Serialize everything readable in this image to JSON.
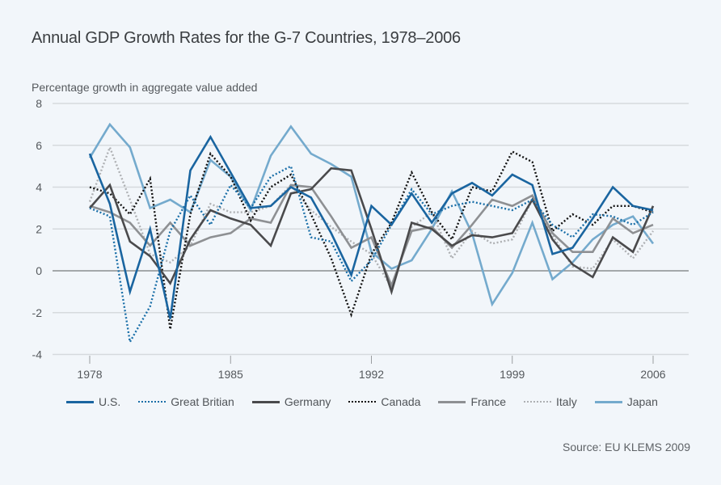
{
  "chart_data": {
    "type": "line",
    "title": "Annual GDP Growth Rates for the G-7 Countries, 1978–2006",
    "ylabel": "Percentage growth in aggregate value added",
    "xlabel": "",
    "source": "Source: EU KLEMS 2009",
    "xlim": [
      1978,
      2006
    ],
    "ylim": [
      -4,
      8
    ],
    "yticks": [
      8,
      6,
      4,
      2,
      0,
      -2,
      -4
    ],
    "xticks": [
      1978,
      1985,
      1992,
      1999,
      2006
    ],
    "grid": true,
    "legend_position": "bottom",
    "x": [
      1978,
      1979,
      1980,
      1981,
      1982,
      1983,
      1984,
      1985,
      1986,
      1987,
      1988,
      1989,
      1990,
      1991,
      1992,
      1993,
      1994,
      1995,
      1996,
      1997,
      1998,
      1999,
      2000,
      2001,
      2002,
      2003,
      2004,
      2005,
      2006
    ],
    "series": [
      {
        "name": "U.S.",
        "color": "#1a65a0",
        "style": "solid",
        "values": [
          5.6,
          3.2,
          -1.0,
          2.0,
          -2.3,
          4.8,
          6.4,
          4.7,
          3.0,
          3.1,
          4.0,
          3.5,
          1.8,
          -0.2,
          3.1,
          2.2,
          3.7,
          2.3,
          3.7,
          4.2,
          3.6,
          4.6,
          4.1,
          0.8,
          1.1,
          2.5,
          4.0,
          3.1,
          2.9
        ]
      },
      {
        "name": "Great Britian",
        "color": "#1a6fa8",
        "style": "dotted",
        "values": [
          3.0,
          2.6,
          -3.4,
          -1.7,
          1.9,
          3.6,
          2.2,
          4.1,
          3.0,
          4.5,
          5.0,
          1.6,
          1.4,
          -0.5,
          0.5,
          2.2,
          3.9,
          2.7,
          3.1,
          3.3,
          3.1,
          2.9,
          3.4,
          2.2,
          1.6,
          2.7,
          2.6,
          2.2,
          2.8
        ]
      },
      {
        "name": "Germany",
        "color": "#4a4a4c",
        "style": "solid",
        "values": [
          3.0,
          4.1,
          1.4,
          0.7,
          -0.6,
          1.5,
          2.9,
          2.5,
          2.2,
          1.2,
          3.7,
          3.9,
          4.9,
          4.8,
          2.0,
          -1.0,
          2.3,
          2.0,
          1.2,
          1.7,
          1.6,
          1.8,
          3.4,
          1.5,
          0.3,
          -0.3,
          1.6,
          0.9,
          3.1
        ]
      },
      {
        "name": "Canada",
        "color": "#111111",
        "style": "dotted",
        "values": [
          4.0,
          3.7,
          2.7,
          4.4,
          -2.8,
          2.7,
          5.6,
          4.5,
          2.4,
          4.0,
          4.6,
          2.7,
          0.6,
          -2.1,
          0.8,
          2.3,
          4.7,
          2.8,
          1.5,
          4.0,
          3.8,
          5.7,
          5.2,
          1.9,
          2.7,
          2.2,
          3.1,
          3.1,
          2.8
        ]
      },
      {
        "name": "France",
        "color": "#8e9093",
        "style": "solid",
        "values": [
          3.1,
          2.8,
          2.3,
          1.2,
          2.3,
          1.2,
          1.6,
          1.8,
          2.5,
          2.3,
          4.1,
          4.0,
          2.6,
          1.1,
          1.6,
          -0.7,
          1.9,
          2.1,
          1.1,
          2.2,
          3.4,
          3.1,
          3.6,
          1.8,
          0.9,
          0.9,
          2.5,
          1.8,
          2.2
        ]
      },
      {
        "name": "Italy",
        "color": "#aeb0b3",
        "style": "dotted",
        "values": [
          3.3,
          5.9,
          3.4,
          0.8,
          0.4,
          1.2,
          3.2,
          2.8,
          2.8,
          3.1,
          4.1,
          2.9,
          2.1,
          1.4,
          0.8,
          -0.8,
          2.1,
          2.8,
          0.6,
          1.9,
          1.3,
          1.5,
          3.4,
          1.7,
          0.2,
          0.1,
          1.5,
          0.6,
          1.9
        ]
      },
      {
        "name": "Japan",
        "color": "#74aacd",
        "style": "solid",
        "values": [
          5.4,
          7.0,
          5.9,
          3.0,
          3.4,
          2.8,
          5.3,
          4.5,
          2.9,
          5.5,
          6.9,
          5.6,
          5.1,
          4.5,
          0.9,
          0.1,
          0.5,
          2.0,
          3.8,
          1.8,
          -1.6,
          -0.1,
          2.3,
          -0.4,
          0.4,
          1.5,
          2.2,
          2.6,
          1.3
        ]
      }
    ]
  }
}
